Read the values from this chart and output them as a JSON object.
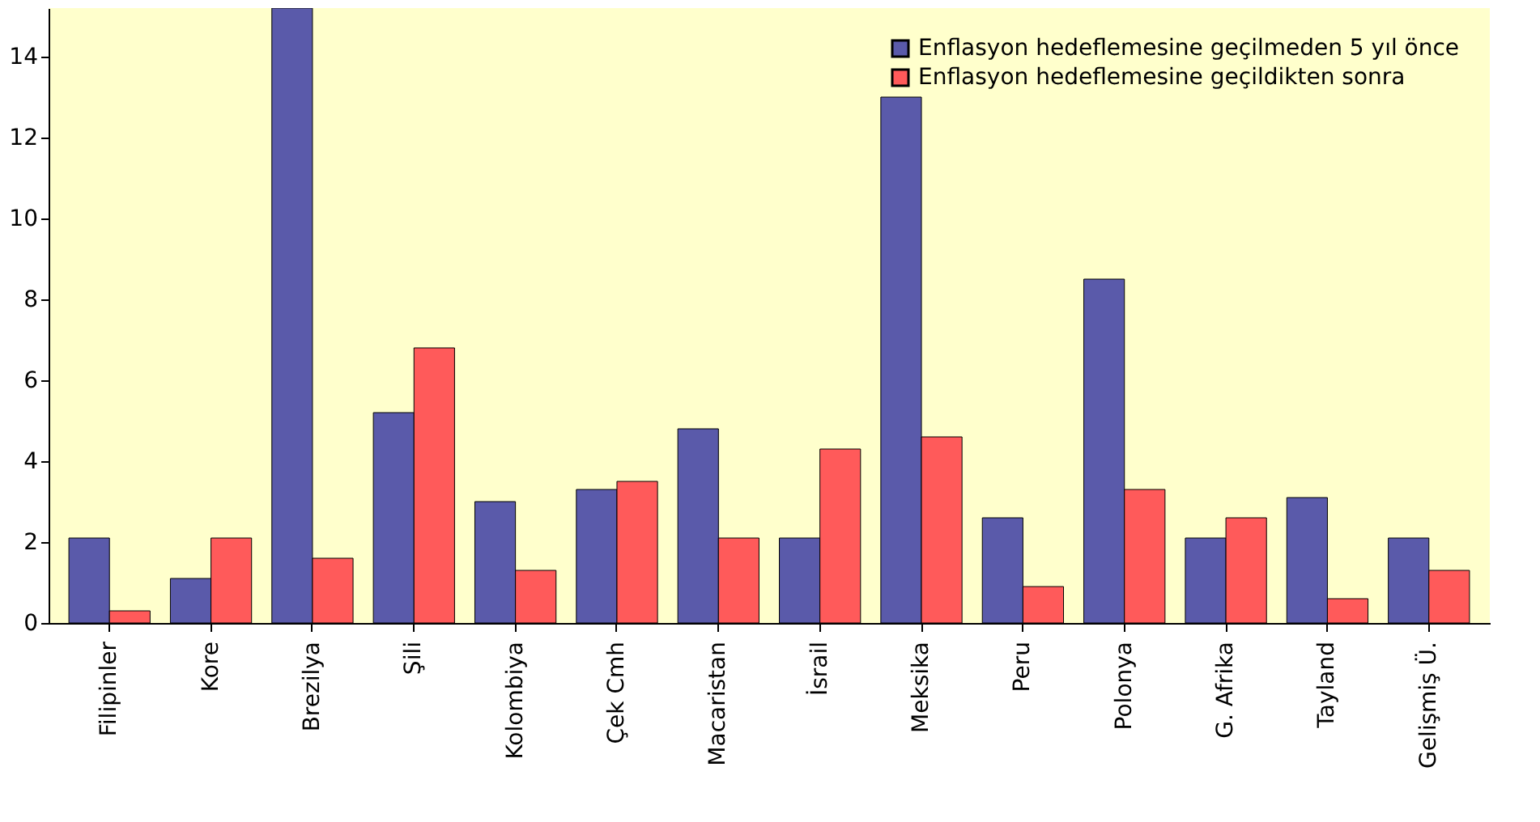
{
  "chart_data": {
    "type": "bar",
    "categories": [
      "Filipinler",
      "Kore",
      "Brezilya",
      "Şili",
      "Kolombiya",
      "Çek Cmh",
      "Macaristan",
      "İsrail",
      "Meksika",
      "Peru",
      "Polonya",
      "G. Afrika",
      "Tayland",
      "Gelişmiş Ü."
    ],
    "series": [
      {
        "name": "Enflasyon hedeflemesine geçilmeden 5 yıl önce",
        "color": "#5a5aaa",
        "values": [
          2.1,
          1.1,
          15.2,
          5.2,
          3.0,
          3.3,
          4.8,
          2.1,
          13.0,
          2.6,
          8.5,
          2.1,
          3.1,
          2.1
        ]
      },
      {
        "name": "Enflasyon hedeflemesine geçildikten sonra",
        "color": "#ff5a5a",
        "values": [
          0.3,
          2.1,
          1.6,
          6.8,
          1.3,
          3.5,
          2.1,
          4.3,
          4.6,
          0.9,
          3.3,
          2.6,
          0.6,
          1.3
        ]
      }
    ],
    "ylim": [
      0,
      15.2
    ],
    "yticks": [
      0,
      2,
      4,
      6,
      8,
      10,
      12,
      14
    ],
    "grid": false,
    "legend": "top right"
  }
}
